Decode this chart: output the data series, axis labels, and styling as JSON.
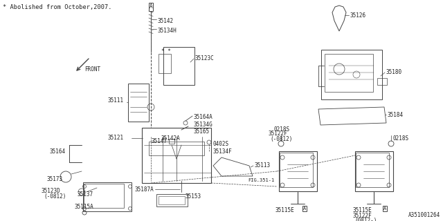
{
  "bg": "#ffffff",
  "lc": "#444444",
  "tc": "#222222",
  "header": "* Abolished from October,2007.",
  "front": "FRONT",
  "fig_ref": "FIG.351-1",
  "part_id": "A351001264"
}
